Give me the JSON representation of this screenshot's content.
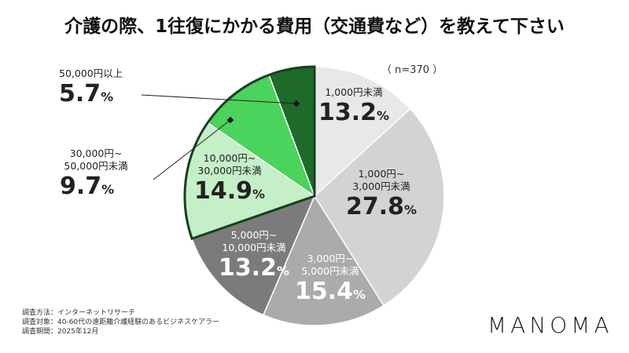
{
  "title": "介護の際、1往復にかかる費用（交通費など）を教えて下さい",
  "sample": "（ n=370 ）",
  "chart_data": {
    "type": "pie",
    "unit": "%",
    "categories": [
      "1,000円未満",
      "1,000円~3,000円未満",
      "3,000円~5,000円未満",
      "5,000円~10,000円未満",
      "10,000円~30,000円未満",
      "30,000円~50,000円未満",
      "50,000円以上"
    ],
    "labels": [
      [
        "1,000円未満"
      ],
      [
        "1,000円~",
        "3,000円未満"
      ],
      [
        "3,000円~",
        "5,000円未満"
      ],
      [
        "5,000円~",
        "10,000円未満"
      ],
      [
        "10,000円~",
        "30,000円未満"
      ],
      [
        "30,000円~",
        "50,000円未満"
      ],
      [
        "50,000円以上"
      ]
    ],
    "values": [
      13.2,
      27.8,
      15.4,
      13.2,
      14.9,
      9.7,
      5.7
    ],
    "display": [
      "13.2",
      "27.8",
      "15.4",
      "13.2",
      "14.9",
      "9.7",
      "5.7"
    ],
    "colors": [
      "#e8e8e8",
      "#d3d3d3",
      "#ababab",
      "#7b7b7b",
      "#c4efc7",
      "#4ad35d",
      "#1d6a2a"
    ],
    "highlight_outline": "#16401c",
    "start": "top",
    "direction": "clockwise"
  },
  "footer": [
    "調査方法：インターネットリサーチ",
    "調査対象：40-60代の遠距離介護経験のあるビジネスケアラー",
    "調査期間：2025年12月"
  ],
  "logo": "MANOMA"
}
